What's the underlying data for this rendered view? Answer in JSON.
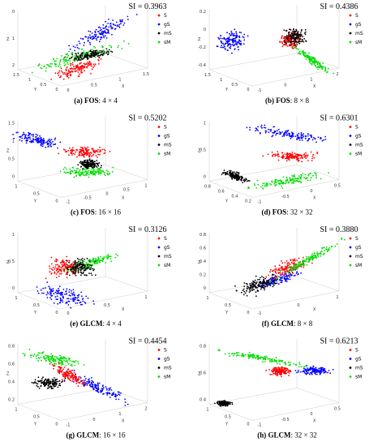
{
  "legend": [
    {
      "name": "S",
      "color": "#ff0000"
    },
    {
      "name": "gS",
      "color": "#0000ff"
    },
    {
      "name": "mS",
      "color": "#000000"
    },
    {
      "name": "sM",
      "color": "#00dd00"
    }
  ],
  "axis_labels": {
    "x": "X",
    "y": "Y",
    "z": "Z"
  },
  "panels": [
    {
      "si": "SI = 0.3963",
      "label": "(a)",
      "method": "FOS",
      "size": ": 4 × 4",
      "z_ticks": [
        "0",
        "1",
        "2"
      ],
      "y_ticks": [
        "1.5",
        "1",
        "0.5",
        "0"
      ],
      "x_ticks": [
        "0",
        "0.5",
        "1",
        "1.5"
      ]
    },
    {
      "si": "SI = 0.4386",
      "label": "(b)",
      "method": "FOS",
      "size": ": 8 × 8",
      "z_ticks": [
        "0.2",
        "0",
        "-0.2",
        "-0.4"
      ],
      "y_ticks": [
        "1.5",
        "1",
        "0.5",
        "0"
      ],
      "x_ticks": [
        "-1",
        "0",
        "1",
        "2"
      ]
    },
    {
      "si": "SI = 0.5202",
      "label": "(c)",
      "method": "FOS",
      "size": ": 16 × 16",
      "z_ticks": [
        "1.5",
        "1",
        "0.5",
        "0"
      ],
      "y_ticks": [
        "1",
        "0.5",
        "0"
      ],
      "x_ticks": [
        "-1",
        "-0.5",
        "0",
        "0.5",
        "1"
      ]
    },
    {
      "si": "SI = 0.6301",
      "label": "(d)",
      "method": "FOS",
      "size": ": 32 × 32",
      "z_ticks": [
        "1",
        "0.5",
        "0"
      ],
      "y_ticks": [
        "0.8",
        "0.6",
        "0.4",
        "0.2"
      ],
      "x_ticks": [
        "-1",
        "-0.5",
        "0",
        "0.5"
      ]
    },
    {
      "si": "SI = 0.3126",
      "label": "(e)",
      "method": "GLCM",
      "size": ": 4 × 4",
      "z_ticks": [
        "1",
        "0.5",
        "0"
      ],
      "y_ticks": [
        "1",
        "0.5",
        "0"
      ],
      "x_ticks": [
        "0",
        "0.5",
        "1"
      ]
    },
    {
      "si": "SI = 0.3880",
      "label": "(f)",
      "method": "GLCM",
      "size": ": 8 × 8",
      "z_ticks": [
        "0.8",
        "0.6",
        "0.4",
        "0.2",
        "0"
      ],
      "y_ticks": [
        "1",
        "0.5",
        "0"
      ],
      "x_ticks": [
        "-1",
        "0",
        "1"
      ]
    },
    {
      "si": "SI = 0.4454",
      "label": "(g)",
      "method": "GLCM",
      "size": ": 16 × 16",
      "z_ticks": [
        "0.8",
        "0.6",
        "0.4",
        "0.2"
      ],
      "y_ticks": [
        "1",
        "0.5",
        "0"
      ],
      "x_ticks": [
        "-1",
        "0",
        "1",
        "2"
      ]
    },
    {
      "si": "SI = 0.6213",
      "label": "(h)",
      "method": "GLCM",
      "size": ": 32 × 32",
      "z_ticks": [
        "0.8",
        "0.6",
        "0.4"
      ],
      "y_ticks": [
        "1",
        "0.5",
        "0"
      ],
      "x_ticks": [
        "-1",
        "-0.5",
        "0",
        "0.5"
      ]
    }
  ]
}
